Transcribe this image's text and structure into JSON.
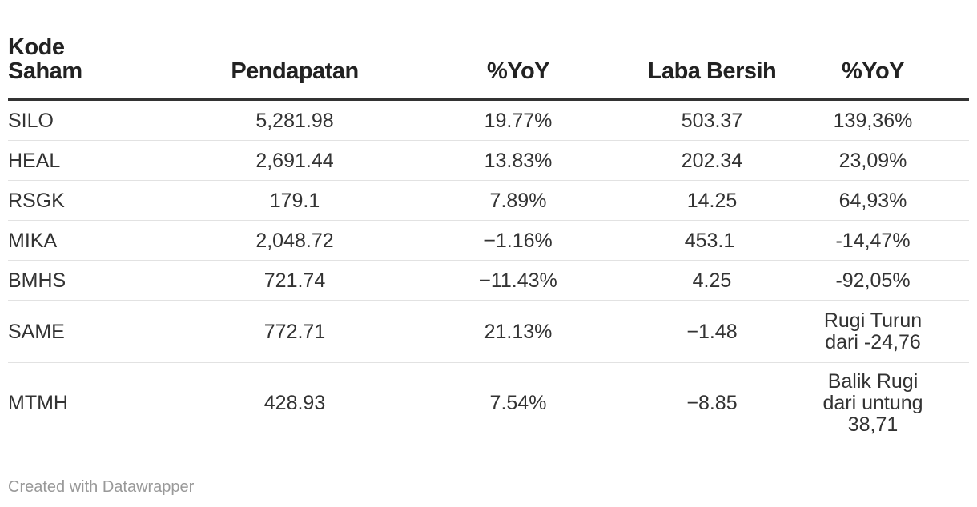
{
  "chart_data": {
    "type": "table",
    "columns": [
      "Kode\nSaham",
      "Pendapatan",
      "%YoY",
      "Laba Bersih",
      "%YoY"
    ],
    "rows": [
      {
        "kode": "SILO",
        "pendapatan": "5,281.98",
        "yoy1": "19.77%",
        "laba": "503.37",
        "yoy2": "139,36%"
      },
      {
        "kode": "HEAL",
        "pendapatan": "2,691.44",
        "yoy1": "13.83%",
        "laba": "202.34",
        "yoy2": "23,09%"
      },
      {
        "kode": "RSGK",
        "pendapatan": "179.1",
        "yoy1": "7.89%",
        "laba": "14.25",
        "yoy2": "64,93%"
      },
      {
        "kode": "MIKA",
        "pendapatan": "2,048.72",
        "yoy1": "−1.16%",
        "laba": "453.1",
        "yoy2": "-14,47%"
      },
      {
        "kode": "BMHS",
        "pendapatan": "721.74",
        "yoy1": "−11.43%",
        "laba": "4.25",
        "yoy2": "-92,05%"
      },
      {
        "kode": "SAME",
        "pendapatan": "772.71",
        "yoy1": "21.13%",
        "laba": "−1.48",
        "yoy2": "Rugi Turun dari -24,76"
      },
      {
        "kode": "MTMH",
        "pendapatan": "428.93",
        "yoy1": "7.54%",
        "laba": "−8.85",
        "yoy2": "Balik Rugi dari untung 38,71"
      }
    ]
  },
  "footer": "Created with Datawrapper"
}
